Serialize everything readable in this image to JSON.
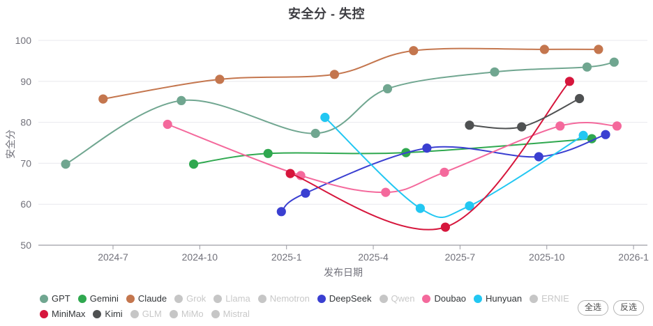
{
  "title": "安全分 - 失控",
  "chart_data": {
    "type": "line",
    "title": "安全分 - 失控",
    "xlabel": "发布日期",
    "ylabel": "安全分",
    "ylim": [
      50,
      100
    ],
    "yticks": [
      50,
      60,
      70,
      80,
      90,
      100
    ],
    "xticks": [
      "2024-7",
      "2024-10",
      "2025-1",
      "2025-4",
      "2025-7",
      "2025-10",
      "2026-1"
    ],
    "grid": "horizontal",
    "legend_position": "bottom",
    "line_style": "smooth",
    "series": [
      {
        "name": "GPT",
        "color": "#70a690",
        "points": [
          {
            "date": "2024-05-12",
            "score": 69.8
          },
          {
            "date": "2024-09-12",
            "score": 85.3
          },
          {
            "date": "2025-02-01",
            "score": 77.3
          },
          {
            "date": "2025-04-16",
            "score": 88.2
          },
          {
            "date": "2025-08-07",
            "score": 92.3
          },
          {
            "date": "2025-11-13",
            "score": 93.5
          },
          {
            "date": "2025-12-11",
            "score": 94.7
          }
        ]
      },
      {
        "name": "Gemini",
        "color": "#2fa84f",
        "points": [
          {
            "date": "2024-09-25",
            "score": 69.8
          },
          {
            "date": "2024-12-12",
            "score": 72.4
          },
          {
            "date": "2025-05-05",
            "score": 72.6
          },
          {
            "date": "2025-11-18",
            "score": 76.0
          }
        ]
      },
      {
        "name": "Claude",
        "color": "#c4764e",
        "points": [
          {
            "date": "2024-06-21",
            "score": 85.7
          },
          {
            "date": "2024-10-22",
            "score": 90.5
          },
          {
            "date": "2025-02-21",
            "score": 91.7
          },
          {
            "date": "2025-05-13",
            "score": 97.5
          },
          {
            "date": "2025-09-29",
            "score": 97.8
          },
          {
            "date": "2025-11-25",
            "score": 97.8
          }
        ]
      },
      {
        "name": "DeepSeek",
        "color": "#3a3fd1",
        "points": [
          {
            "date": "2024-12-26",
            "score": 58.2
          },
          {
            "date": "2025-01-21",
            "score": 62.7
          },
          {
            "date": "2025-05-27",
            "score": 73.7
          },
          {
            "date": "2025-09-23",
            "score": 71.6
          },
          {
            "date": "2025-12-02",
            "score": 77.0
          }
        ]
      },
      {
        "name": "Doubao",
        "color": "#f4699c",
        "points": [
          {
            "date": "2024-08-28",
            "score": 79.5
          },
          {
            "date": "2025-01-16",
            "score": 67.0
          },
          {
            "date": "2025-04-14",
            "score": 62.9
          },
          {
            "date": "2025-06-15",
            "score": 67.8
          },
          {
            "date": "2025-10-15",
            "score": 79.1
          },
          {
            "date": "2025-12-14",
            "score": 79.1
          }
        ]
      },
      {
        "name": "Hunyuan",
        "color": "#22c7f2",
        "points": [
          {
            "date": "2025-02-11",
            "score": 81.2
          },
          {
            "date": "2025-05-20",
            "score": 59.0
          },
          {
            "date": "2025-07-11",
            "score": 59.6
          },
          {
            "date": "2025-11-09",
            "score": 76.8
          }
        ]
      },
      {
        "name": "MiniMax",
        "color": "#d6163c",
        "points": [
          {
            "date": "2025-01-05",
            "score": 67.5
          },
          {
            "date": "2025-06-16",
            "score": 54.4
          },
          {
            "date": "2025-10-25",
            "score": 90.0
          }
        ]
      },
      {
        "name": "Kimi",
        "color": "#4f5152",
        "points": [
          {
            "date": "2025-07-11",
            "score": 79.3
          },
          {
            "date": "2025-09-05",
            "score": 78.9
          },
          {
            "date": "2025-11-05",
            "score": 85.8
          }
        ]
      }
    ]
  },
  "legend": {
    "items": [
      {
        "label": "GPT",
        "color": "#70a690",
        "active": true
      },
      {
        "label": "Gemini",
        "color": "#2fa84f",
        "active": true
      },
      {
        "label": "Claude",
        "color": "#c4764e",
        "active": true
      },
      {
        "label": "Grok",
        "color": "#c6c6c6",
        "active": false
      },
      {
        "label": "Llama",
        "color": "#c6c6c6",
        "active": false
      },
      {
        "label": "Nemotron",
        "color": "#c6c6c6",
        "active": false
      },
      {
        "label": "DeepSeek",
        "color": "#3a3fd1",
        "active": true
      },
      {
        "label": "Qwen",
        "color": "#c6c6c6",
        "active": false
      },
      {
        "label": "Doubao",
        "color": "#f4699c",
        "active": true
      },
      {
        "label": "Hunyuan",
        "color": "#22c7f2",
        "active": true
      },
      {
        "label": "ERNIE",
        "color": "#c6c6c6",
        "active": false
      },
      {
        "label": "MiniMax",
        "color": "#d6163c",
        "active": true
      },
      {
        "label": "Kimi",
        "color": "#4f5152",
        "active": true
      },
      {
        "label": "GLM",
        "color": "#c6c6c6",
        "active": false
      },
      {
        "label": "MiMo",
        "color": "#c6c6c6",
        "active": false
      },
      {
        "label": "Mistral",
        "color": "#c6c6c6",
        "active": false
      }
    ],
    "row_break_index": 11,
    "select_all_label": "全选",
    "invert_label": "反选",
    "disabled_color": "#c6c6c6"
  },
  "style": {
    "gridline_color": "#e8e8ee",
    "axis_line_color": "#85858d",
    "tick_color": "#9a9aa2",
    "tick_label_color": "#71717a",
    "title_color": "#3d3d42"
  }
}
